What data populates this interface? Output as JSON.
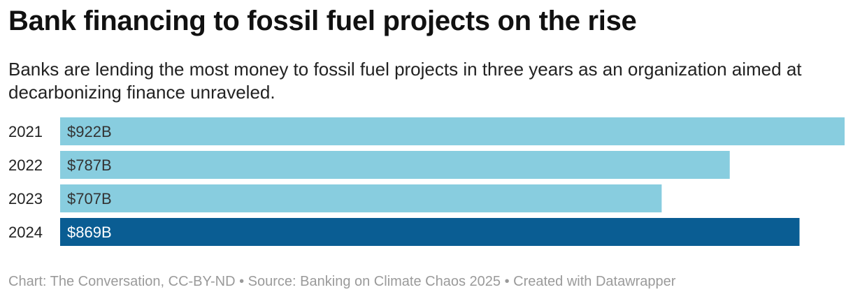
{
  "title": "Bank financing to fossil fuel projects on the rise",
  "subtitle": "Banks are lending the most money to fossil fuel projects in three years as an organization aimed at decarbonizing finance unraveled.",
  "footer": "Chart: The Conversation, CC-BY-ND • Source: Banking on Climate Chaos 2025 • Created with Datawrapper",
  "colors": {
    "default_bar": "#88cddf",
    "highlight_bar": "#0a5d93",
    "label_dark": "#333333",
    "label_light": "#ffffff"
  },
  "chart_data": {
    "type": "bar",
    "orientation": "horizontal",
    "categories": [
      "2021",
      "2022",
      "2023",
      "2024"
    ],
    "values": [
      922,
      787,
      707,
      869
    ],
    "value_labels": [
      "$922B",
      "$787B",
      "$707B",
      "$869B"
    ],
    "highlight": "2024",
    "unit": "billion USD",
    "xlim": [
      0,
      922
    ],
    "grid": false
  }
}
